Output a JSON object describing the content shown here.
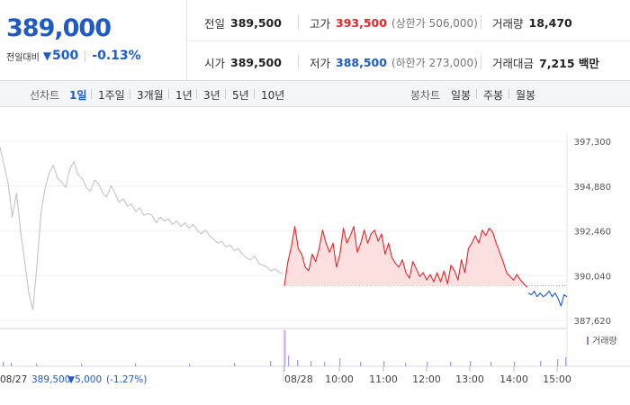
{
  "quote": {
    "price": "389,000",
    "change_label": "전일대비",
    "change_amount": "500",
    "change_percent": "-0.13%"
  },
  "stats": {
    "prev_close_label": "전일",
    "prev_close": "389,500",
    "high_label": "고가",
    "high": "393,500",
    "upper_limit_text": "(상한가 506,000)",
    "volume_label": "거래량",
    "volume": "18,470",
    "open_label": "시가",
    "open": "389,500",
    "low_label": "저가",
    "low": "388,500",
    "lower_limit_text": "(하한가 273,000)",
    "amount_label": "거래대금",
    "amount": "7,215 백만"
  },
  "toolbar": {
    "line_chart_label": "선차트",
    "periods": [
      "1일",
      "1주일",
      "3개월",
      "1년",
      "3년",
      "5년",
      "10년"
    ],
    "active_period": "1일",
    "candle_chart_label": "봉차트",
    "candles": [
      "일봉",
      "주봉",
      "월봉"
    ]
  },
  "colors": {
    "up": "#e0262a",
    "down": "#1f5bc6",
    "prev_day_line": "#c3c3c3",
    "up_fill": "#fbdada"
  },
  "chart_data": {
    "type": "line",
    "y_ticks": [
      "397,300",
      "394,880",
      "392,460",
      "390,040",
      "387,620"
    ],
    "ylim": [
      387620,
      397300
    ],
    "reference_price": 389500,
    "x_labels": [
      "08/28",
      "10:00",
      "11:00",
      "12:00",
      "13:00",
      "14:00",
      "15:00"
    ],
    "volume_legend": "거래량",
    "prev_day_footer": {
      "date": "08/27",
      "price": "389,500",
      "change": "▼5,000",
      "percent": "(-1.27%)"
    },
    "series": [
      {
        "values": [
          397000,
          396000,
          395000,
          393200,
          394500,
          392500,
          390800,
          389100,
          388200,
          390600,
          393500,
          394800,
          395600,
          396000,
          395300,
          395100,
          394800,
          395800,
          396200,
          395500,
          395300,
          394800,
          394600,
          395200,
          395000,
          394500,
          394300,
          394900,
          394500,
          394000,
          394200,
          393800,
          393900,
          393500,
          393700,
          393300,
          393400,
          393300,
          392900,
          393200,
          393000,
          393100,
          392800,
          393000,
          392700,
          392900,
          392600,
          392800,
          392500,
          392300,
          392500,
          392200,
          392000,
          391800,
          391900,
          391600,
          391700,
          391400,
          391500,
          391200,
          391000,
          390900,
          391100,
          390700,
          390600,
          390500,
          390300,
          390400,
          390200,
          390200
        ]
      },
      {
        "values": [
          389500,
          390800,
          391600,
          392700,
          391500,
          391200,
          390500,
          390300,
          391200,
          390800,
          391500,
          392500,
          391800,
          391300,
          391800,
          390500,
          391200,
          392600,
          391800,
          392200,
          392700,
          391300,
          391800,
          392500,
          391800,
          392300,
          392500,
          391900,
          392300,
          391200,
          391800,
          391000,
          390700,
          390500,
          390900,
          390200,
          389900,
          390800,
          390400,
          390000,
          390200,
          389800,
          390100,
          389700,
          390200,
          389700,
          390300,
          389600,
          390600,
          390300,
          389800,
          390900,
          390200,
          391500,
          391800,
          392200,
          391800,
          392500,
          392200,
          392600,
          392400,
          391800,
          391300,
          390800,
          390200,
          390000,
          389800,
          390100,
          389800,
          389600,
          389400
        ]
      },
      {
        "values": [
          389100,
          389000,
          389200,
          388900,
          389100,
          388900,
          389000,
          389200,
          388900,
          389100,
          388800,
          388400,
          389000,
          388900
        ]
      }
    ]
  }
}
